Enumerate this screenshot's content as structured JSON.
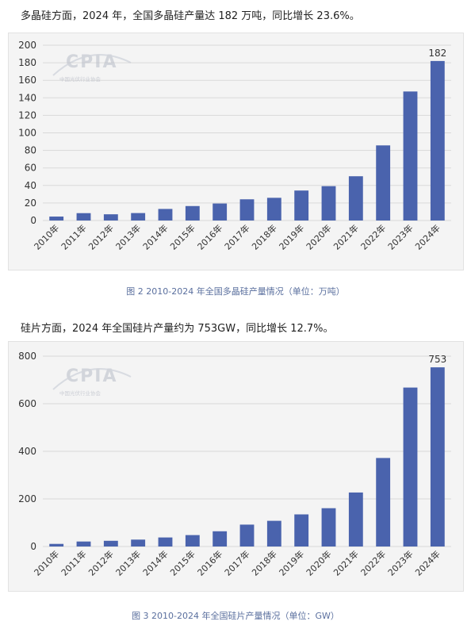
{
  "paragraphs": {
    "p1": "多晶硅方面，2024 年，全国多晶硅产量达 182 万吨，同比增长 23.6%。",
    "p2": "硅片方面，2024 年全国硅片产量约为 753GW，同比增长 12.7%。"
  },
  "captions": {
    "c1": "图 2   2010-2024 年全国多晶硅产量情况（单位：万吨）",
    "c2": "图 3   2010-2024 年全国硅片产量情况（单位：GW）"
  },
  "watermark": {
    "logo_text": "CPIA",
    "org_text": "中国光伏行业协会"
  },
  "colors": {
    "bar": "#4a63ad",
    "grid": "#d9d9d9",
    "caption": "#5a6f9e"
  },
  "chart_data": [
    {
      "type": "bar",
      "categories": [
        "2010年",
        "2011年",
        "2012年",
        "2013年",
        "2014年",
        "2015年",
        "2016年",
        "2017年",
        "2018年",
        "2019年",
        "2020年",
        "2021年",
        "2022年",
        "2023年",
        "2024年"
      ],
      "values": [
        4.5,
        8.4,
        7.1,
        8.5,
        13.2,
        16.5,
        19.4,
        24.2,
        25.9,
        34.2,
        39.2,
        50.5,
        85.7,
        147.2,
        182
      ],
      "data_labels": [
        "",
        "",
        "",
        "",
        "",
        "",
        "",
        "",
        "",
        "",
        "",
        "",
        "",
        "",
        "182"
      ],
      "yticks": [
        0,
        20,
        40,
        60,
        80,
        100,
        120,
        140,
        160,
        180,
        200
      ],
      "ylim": [
        0,
        200
      ],
      "grid": true,
      "legend": "none"
    },
    {
      "type": "bar",
      "categories": [
        "2010年",
        "2011年",
        "2012年",
        "2013年",
        "2014年",
        "2015年",
        "2016年",
        "2017年",
        "2018年",
        "2019年",
        "2020年",
        "2021年",
        "2022年",
        "2023年",
        "2024年"
      ],
      "values": [
        11,
        21,
        24,
        29,
        38,
        48,
        64,
        92,
        108,
        135,
        161,
        227,
        372,
        668,
        753
      ],
      "data_labels": [
        "",
        "",
        "",
        "",
        "",
        "",
        "",
        "",
        "",
        "",
        "",
        "",
        "",
        "",
        "753"
      ],
      "yticks": [
        0,
        200,
        400,
        600,
        800
      ],
      "ylim": [
        0,
        800
      ],
      "grid": true,
      "legend": "none"
    }
  ]
}
